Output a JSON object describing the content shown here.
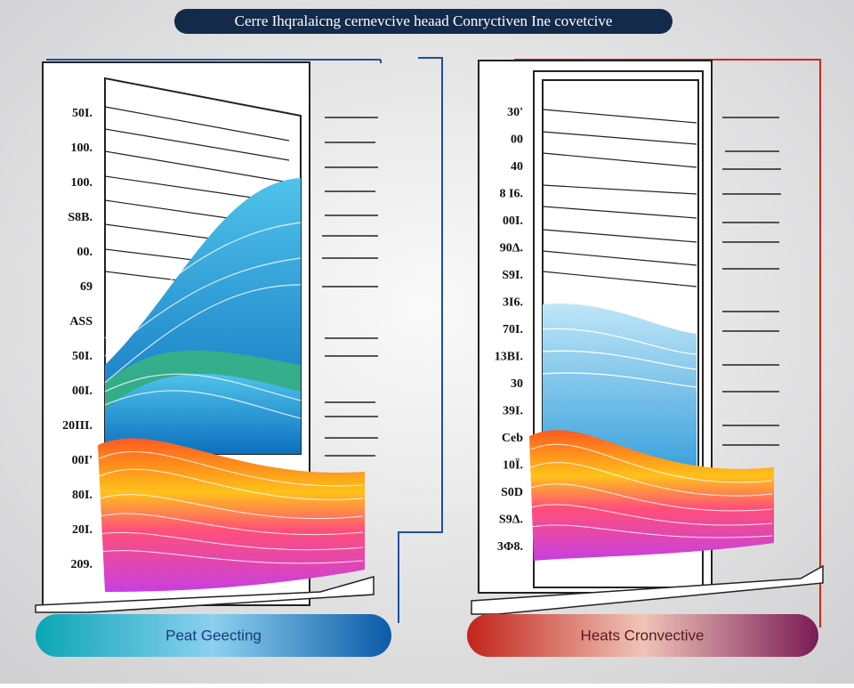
{
  "header": {
    "title": "Cerre Ihqralaicng cernevcive heaad Conryctiven Ine covetcive"
  },
  "left_panel": {
    "axis_labels": [
      "50I.",
      "100.",
      "100.",
      "S8B.",
      "00.",
      "69",
      "ASS",
      "50I.",
      "00I.",
      "20III.",
      "00I'",
      "80I.",
      "20I.",
      "209."
    ],
    "button": "Peat Geecting"
  },
  "right_panel": {
    "axis_labels": [
      "30'",
      "00",
      "40",
      "8 I6.",
      "00I.",
      "90Δ.",
      "S9I.",
      "3I6.",
      "70I.",
      "13BI.",
      "30",
      "39I.",
      "Ceb",
      "10Ϊ.",
      "S0D",
      "S9Δ.",
      "3Φ8."
    ],
    "button": "Heats Cronvective"
  }
}
